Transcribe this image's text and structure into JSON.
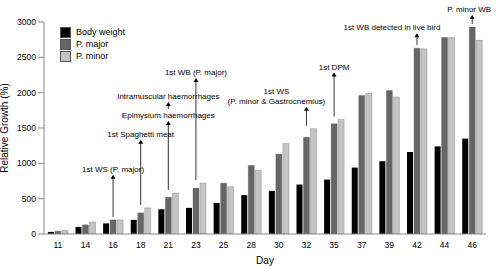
{
  "chart_data": {
    "type": "bar",
    "x_label": "Day",
    "y_label": "Relative Growth (%)",
    "categories": [
      11,
      14,
      16,
      18,
      21,
      23,
      25,
      28,
      30,
      32,
      35,
      37,
      39,
      42,
      44,
      46
    ],
    "series": [
      {
        "name": "Body weight",
        "color": "#000000",
        "values": [
          30,
          100,
          150,
          200,
          350,
          370,
          440,
          550,
          610,
          700,
          770,
          940,
          1030,
          1160,
          1240,
          1350
        ]
      },
      {
        "name": "P. major",
        "color": "#666666",
        "values": [
          40,
          130,
          200,
          300,
          520,
          650,
          720,
          970,
          1130,
          1370,
          1560,
          1960,
          2030,
          2630,
          2780,
          2930
        ]
      },
      {
        "name": "P. minor",
        "color": "#c4c4c4",
        "values": [
          50,
          170,
          200,
          370,
          580,
          720,
          670,
          900,
          1280,
          1490,
          1620,
          1990,
          1940,
          2620,
          2780,
          2740
        ]
      }
    ],
    "ylim": [
      0,
      3000
    ],
    "yticks": [
      0,
      500,
      1000,
      1500,
      2000,
      2500,
      3000
    ],
    "grid": false,
    "legend": "upper left",
    "annotations": [
      {
        "x": 16,
        "text": "1st WS (P. major)"
      },
      {
        "x": 18,
        "text": "1st Spaghetti meat"
      },
      {
        "x": 21,
        "text": "Epimysium haemorrhages"
      },
      {
        "x": 21,
        "text": "Intramuscular haemorrhages"
      },
      {
        "x": 23,
        "text": "1st WB (P. major)"
      },
      {
        "x": 32,
        "text": "1st WS\n(P. minor & Gastrocnemius)"
      },
      {
        "x": 35,
        "text": "1st DPM"
      },
      {
        "x": 42,
        "text": "1st WB detected in live bird"
      },
      {
        "x": 46,
        "text": "P. minor WB"
      }
    ]
  }
}
